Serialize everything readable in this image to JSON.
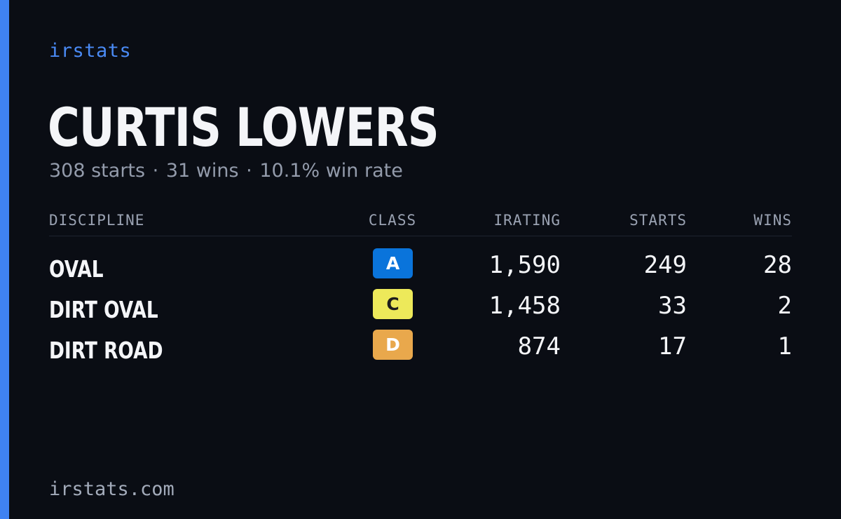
{
  "brand": "irstats",
  "driver": {
    "name": "CURTIS LOWERS",
    "starts_text": "308 starts",
    "wins_text": "31 wins",
    "win_rate_text": "10.1% win rate",
    "separator": "·"
  },
  "table": {
    "headers": {
      "discipline": "DISCIPLINE",
      "class": "CLASS",
      "irating": "IRATING",
      "starts": "STARTS",
      "wins": "WINS"
    },
    "rows": [
      {
        "discipline": "OVAL",
        "class": "A",
        "class_color": "#0a74db",
        "class_text_color": "#ffffff",
        "irating": "1,590",
        "starts": "249",
        "wins": "28"
      },
      {
        "discipline": "DIRT OVAL",
        "class": "C",
        "class_color": "#ede95a",
        "class_text_color": "#1c1c1c",
        "irating": "1,458",
        "starts": "33",
        "wins": "2"
      },
      {
        "discipline": "DIRT ROAD",
        "class": "D",
        "class_color": "#e9a84c",
        "class_text_color": "#ffffff",
        "irating": "874",
        "starts": "17",
        "wins": "1"
      }
    ]
  },
  "footer": "irstats.com",
  "colors": {
    "background": "#0a0d14",
    "accent": "#3f82f2"
  }
}
